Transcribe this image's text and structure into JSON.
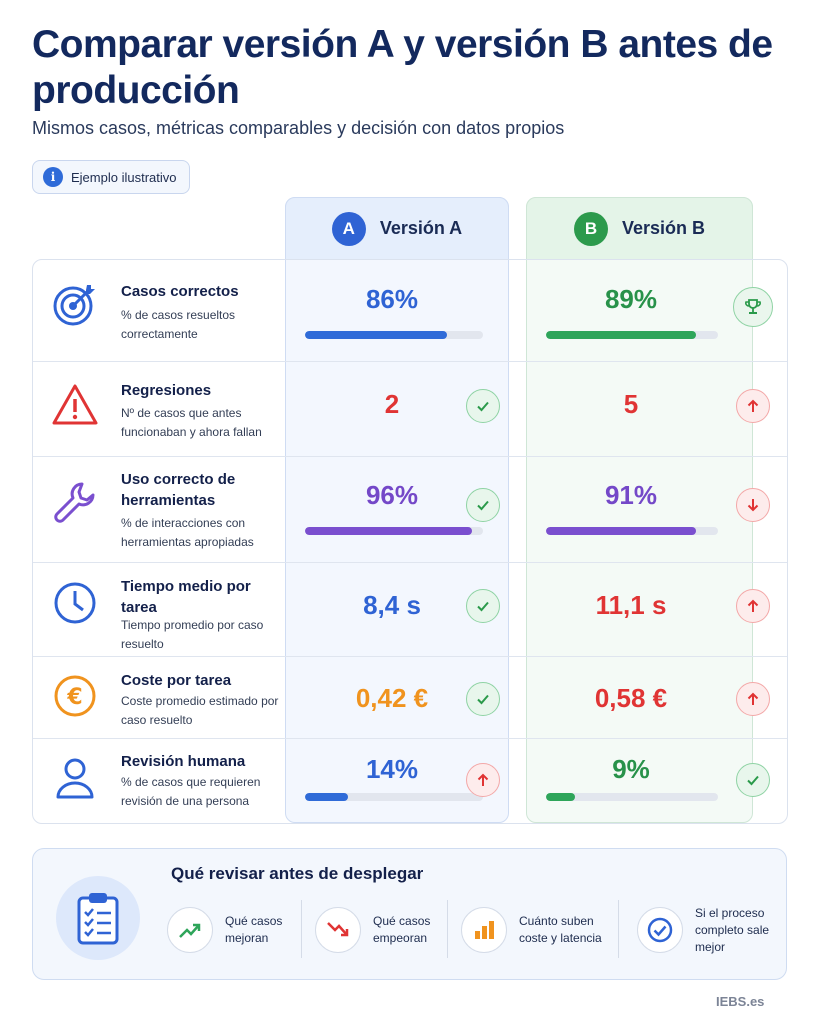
{
  "header": {
    "title": "Comparar versión A y versión B antes de producción",
    "subtitle": "Mismos casos, métricas comparables y decisión con datos propios",
    "badge_label": "Ejemplo ilustrativo",
    "badge_icon": "info-icon"
  },
  "columns": {
    "a": {
      "letter": "A",
      "label": "Versión A",
      "color": "#2f63d4"
    },
    "b": {
      "letter": "B",
      "label": "Versión B",
      "color": "#2c9a4c"
    }
  },
  "metrics": [
    {
      "name": "Casos correctos",
      "desc": "% de casos resueltos correctamente",
      "icon": "target-icon",
      "a": {
        "value": "86%",
        "bar": 0.8,
        "bar_color": "#2f6bd8",
        "text_color": "#2f63d4"
      },
      "b": {
        "value": "89%",
        "bar": 0.87,
        "bar_color": "#2ea55a",
        "text_color": "#28924a",
        "indicator": "trophy-icon"
      }
    },
    {
      "name": "Regresiones",
      "desc": "Nº de casos que antes funcionaban y ahora fallan",
      "icon": "warning-icon",
      "a": {
        "value": "2",
        "text_color": "#e03434",
        "indicator": "check-icon"
      },
      "b": {
        "value": "5",
        "text_color": "#e03434",
        "indicator": "arrow-up-icon"
      }
    },
    {
      "name": "Uso correcto de herramientas",
      "desc": "% de interacciones con herramientas apropiadas",
      "icon": "wrench-icon",
      "a": {
        "value": "96%",
        "bar": 0.94,
        "bar_color": "#7a4fcf",
        "text_color": "#7448c8",
        "indicator": "check-icon"
      },
      "b": {
        "value": "91%",
        "bar": 0.87,
        "bar_color": "#7a4fcf",
        "text_color": "#7448c8",
        "indicator": "arrow-down-icon"
      }
    },
    {
      "name": "Tiempo medio por tarea",
      "desc": "Tiempo promedio por caso resuelto",
      "icon": "clock-icon",
      "a": {
        "value": "8,4 s",
        "text_color": "#2f63d4",
        "indicator": "check-icon"
      },
      "b": {
        "value": "11,1 s",
        "text_color": "#e03434",
        "indicator": "arrow-up-icon"
      }
    },
    {
      "name": "Coste por tarea",
      "desc": "Coste promedio estimado por caso resuelto",
      "icon": "euro-icon",
      "a": {
        "value": "0,42 €",
        "text_color": "#f0931e",
        "indicator": "check-icon"
      },
      "b": {
        "value": "0,58 €",
        "text_color": "#e03434",
        "indicator": "arrow-up-icon"
      }
    },
    {
      "name": "Revisión humana",
      "desc": "% de casos que requieren revisión de una persona",
      "icon": "person-icon",
      "a": {
        "value": "14%",
        "bar": 0.24,
        "bar_color": "#2f6bd8",
        "text_color": "#2f63d4",
        "indicator": "arrow-up-icon"
      },
      "b": {
        "value": "9%",
        "bar": 0.17,
        "bar_color": "#2ea55a",
        "text_color": "#28924a",
        "indicator": "check-icon"
      }
    }
  ],
  "checklist": {
    "title": "Qué revisar antes de desplegar",
    "icon": "clipboard-icon",
    "items": [
      {
        "label": "Qué casos mejoran",
        "icon": "trend-up-icon"
      },
      {
        "label": "Qué casos empeoran",
        "icon": "trend-down-icon"
      },
      {
        "label": "Cuánto suben coste y latencia",
        "icon": "bar-chart-icon"
      },
      {
        "label": "Si el proceso completo sale mejor",
        "icon": "check-circle-icon"
      }
    ]
  },
  "footer": {
    "brand": "IEBS.es"
  }
}
